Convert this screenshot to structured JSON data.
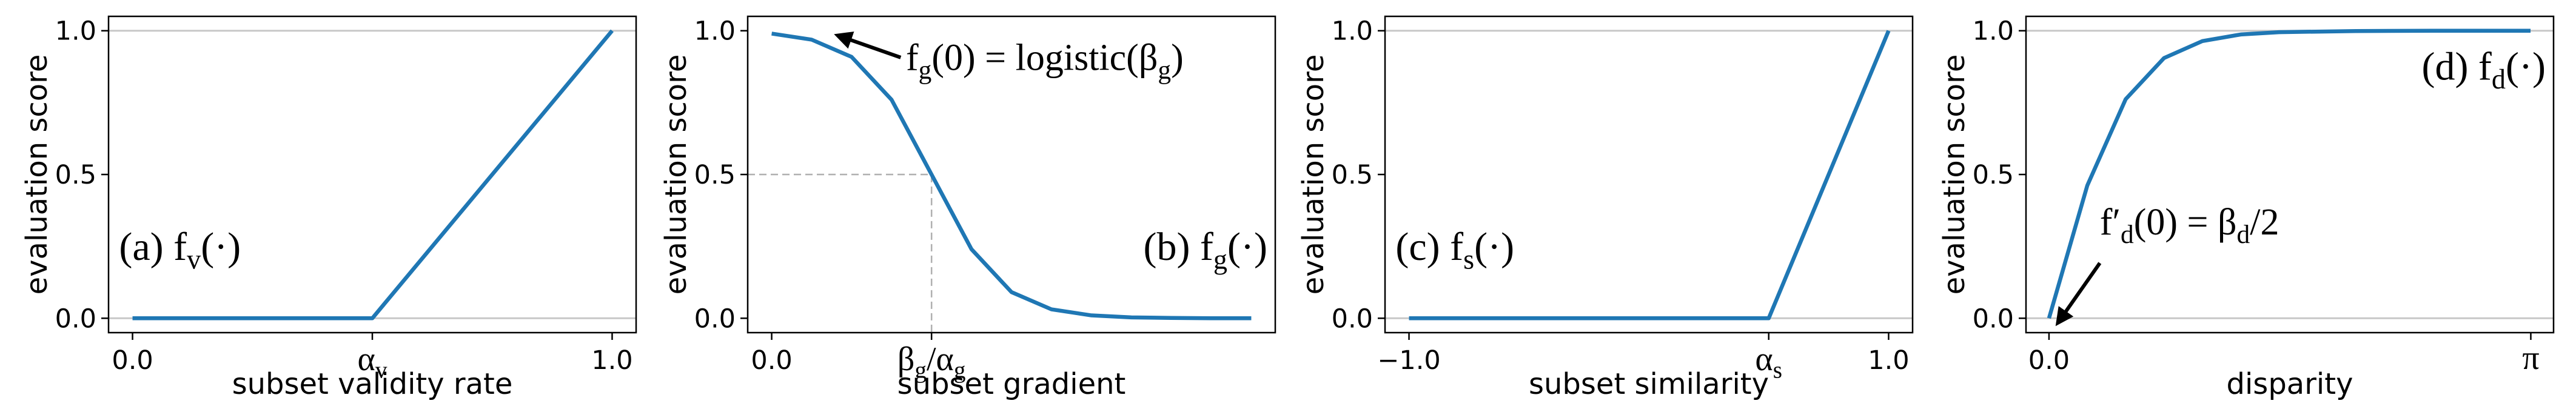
{
  "chart_data": [
    {
      "type": "line",
      "ylabel": "evaluation score",
      "xlabel": "subset validity rate",
      "label": [
        "(a) f",
        "v",
        "(·)"
      ],
      "x": [
        0,
        0.5,
        1
      ],
      "values": [
        0,
        0,
        1
      ],
      "color": "#1f77b4",
      "xlim": [
        -0.05,
        1.05
      ],
      "ylim": [
        -0.05,
        1.05
      ],
      "xticks": [
        {
          "value": 0,
          "label": "0.0"
        },
        {
          "value": 0.5,
          "label": [
            "α",
            "v"
          ]
        },
        {
          "value": 1,
          "label": "1.0"
        }
      ],
      "yticks": [
        {
          "value": 0,
          "label": "0.0"
        },
        {
          "value": 0.5,
          "label": "0.5"
        },
        {
          "value": 1,
          "label": "1.0"
        }
      ],
      "hlines": [
        0,
        1
      ]
    },
    {
      "type": "line",
      "ylabel": "evaluation score",
      "xlabel": "subset gradient",
      "label": [
        "(b) f",
        "g",
        "(·)"
      ],
      "annotation": [
        "f",
        "g",
        "(0) = logistic(β",
        "g",
        ")"
      ],
      "x": [
        0,
        0.25,
        0.5,
        0.75,
        1,
        1.25,
        1.5,
        1.75,
        2,
        2.25,
        2.5,
        2.75,
        3
      ],
      "values": [
        0.99,
        0.969,
        0.909,
        0.76,
        0.5,
        0.24,
        0.091,
        0.031,
        0.01,
        0.003,
        0.001,
        0,
        0
      ],
      "color": "#1f77b4",
      "xlim": [
        -0.15,
        3.15
      ],
      "ylim": [
        -0.05,
        1.05
      ],
      "xticks": [
        {
          "value": 0,
          "label": "0.0"
        },
        {
          "value": 1,
          "label": [
            "β",
            "g",
            "/α",
            "g"
          ]
        }
      ],
      "yticks": [
        {
          "value": 0,
          "label": "0.0"
        },
        {
          "value": 0.5,
          "label": "0.5"
        },
        {
          "value": 1,
          "label": "1.0"
        }
      ],
      "guide": true
    },
    {
      "type": "line",
      "ylabel": "evaluation score",
      "xlabel": "subset similarity",
      "label": [
        "(c) f",
        "s",
        "(·)"
      ],
      "x": [
        -1,
        0.5,
        1
      ],
      "values": [
        0,
        0,
        1
      ],
      "color": "#1f77b4",
      "xlim": [
        -1.1,
        1.1
      ],
      "ylim": [
        -0.05,
        1.05
      ],
      "xticks": [
        {
          "value": -1,
          "label": "−1.0"
        },
        {
          "value": 0.5,
          "label": [
            "α",
            "s"
          ]
        },
        {
          "value": 1,
          "label": "1.0"
        }
      ],
      "yticks": [
        {
          "value": 0,
          "label": "0.0"
        },
        {
          "value": 0.5,
          "label": "0.5"
        },
        {
          "value": 1,
          "label": "1.0"
        }
      ],
      "hlines": [
        0,
        1
      ]
    },
    {
      "type": "line",
      "ylabel": "evaluation score",
      "xlabel": "disparity",
      "label": [
        "(d) f",
        "d",
        "(·)"
      ],
      "annotation": [
        "f′",
        "d",
        "(0) = β",
        "d",
        "/2"
      ],
      "x": [
        0,
        0.25,
        0.5,
        0.75,
        1,
        1.25,
        1.5,
        2,
        2.5,
        3,
        3.14
      ],
      "values": [
        0,
        0.462,
        0.762,
        0.905,
        0.964,
        0.987,
        0.995,
        0.999,
        1,
        1,
        1
      ],
      "color": "#1f77b4",
      "xlim": [
        -0.15,
        3.29
      ],
      "ylim": [
        -0.05,
        1.05
      ],
      "xticks": [
        {
          "value": 0,
          "label": "0.0"
        },
        {
          "value": 3.14159,
          "label": "π"
        }
      ],
      "yticks": [
        {
          "value": 0,
          "label": "0.0"
        },
        {
          "value": 0.5,
          "label": "0.5"
        },
        {
          "value": 1,
          "label": "1.0"
        }
      ],
      "hlines": [
        0,
        1
      ]
    }
  ]
}
